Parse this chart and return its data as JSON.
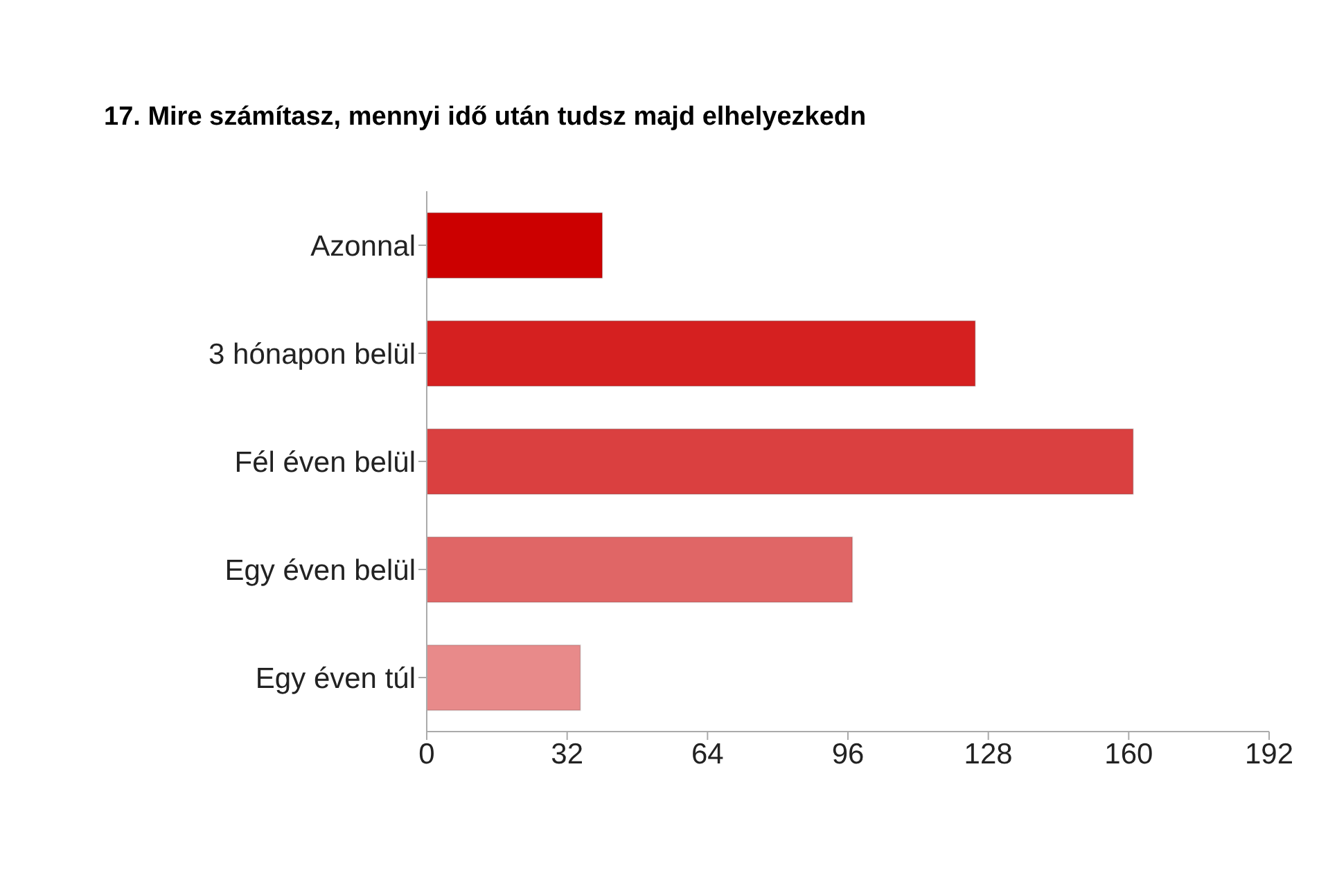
{
  "chart_data": {
    "type": "bar",
    "orientation": "horizontal",
    "title": "17. Mire számítasz, mennyi idő után tudsz majd elhelyezkedn",
    "categories": [
      "Azonnal",
      "3 hónapon belül",
      "Fél éven belül",
      "Egy éven belül",
      "Egy éven túl"
    ],
    "values": [
      40,
      125,
      161,
      97,
      35
    ],
    "colors": [
      "#cc0000",
      "#d52020",
      "#da4040",
      "#e06666",
      "#e88a8a"
    ],
    "xlim": [
      0,
      192
    ],
    "xticks": [
      0,
      32,
      64,
      96,
      128,
      160,
      192
    ],
    "grid": false,
    "legend": false
  }
}
